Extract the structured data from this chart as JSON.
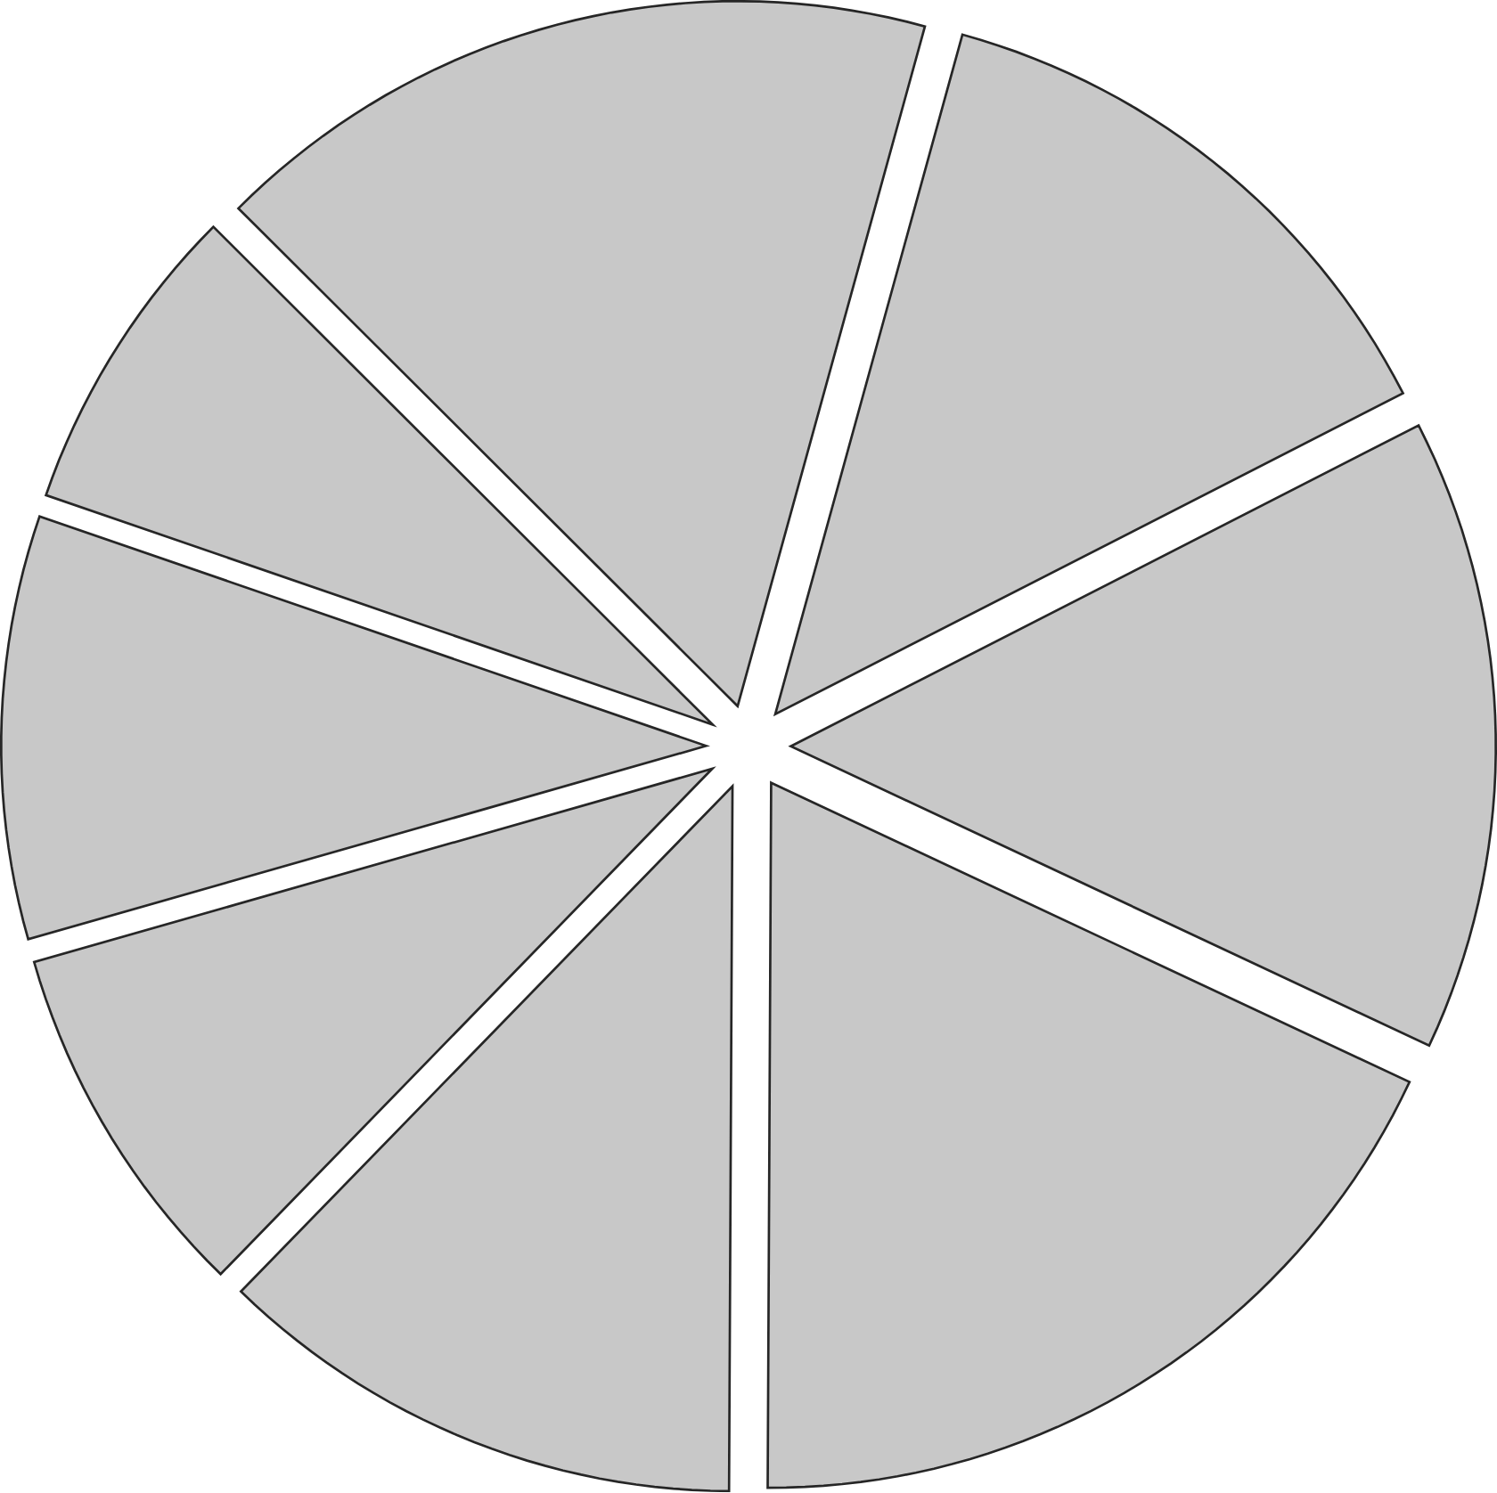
{
  "chart_data": {
    "type": "pie",
    "categories": [
      null,
      null,
      null,
      null,
      null,
      null,
      null,
      null
    ],
    "values": [
      13.2,
      14.5,
      18.1,
      12.2,
      8.3,
      9.7,
      7.2,
      16.8
    ],
    "colors": [
      "#c8c8c8",
      "#c8c8c8",
      "#c8c8c8",
      "#c8c8c8",
      "#c8c8c8",
      "#c8c8c8",
      "#c8c8c8",
      "#c8c8c8"
    ]
  }
}
